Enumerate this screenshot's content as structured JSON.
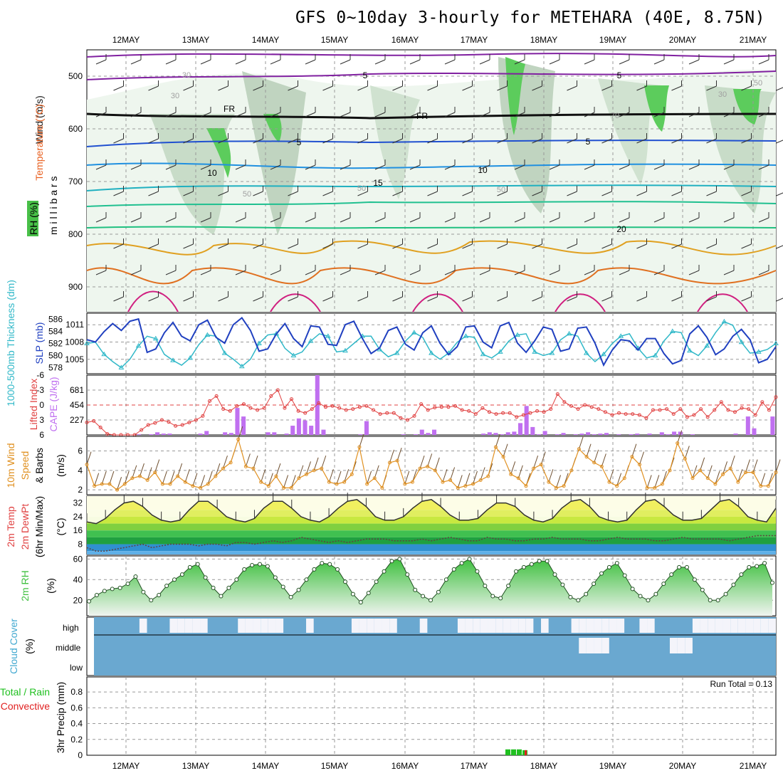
{
  "title": "GFS 0~10day 3-hourly for METEHARA (40E, 8.75N)",
  "dates": [
    "12MAY",
    "13MAY",
    "14MAY",
    "15MAY",
    "16MAY",
    "17MAY",
    "18MAY",
    "19MAY",
    "20MAY",
    "21MAY"
  ],
  "colors": {
    "rh": "#48c048",
    "temperature_label": "#e86020",
    "wind_label": "#202020",
    "thickness": "#30b8c8",
    "slp": "#2040c0",
    "cape": "#c070f0",
    "lifted_index": "#e04040",
    "wind10m": "#e09020",
    "rh2m": "#40c040",
    "cloud": "#6aa8d0",
    "precip_total": "#20c020",
    "precip_conv": "#e02020"
  },
  "labels": {
    "panel1": {
      "millibars": "m i l l i b a r s",
      "wind": "Wind (m/s)",
      "temperature": "Temperature (°C)",
      "rh": "RH (%)"
    },
    "panel2": {
      "thickness": "1000-500mb Thickness (dm)",
      "slp": "SLP (mb)"
    },
    "panel3": {
      "lifted": "Lifted Index",
      "cape": "CAPE (J/kg)"
    },
    "panel4": {
      "line1": "10m Wind",
      "line2": "Speed",
      "line3": "& Barbs",
      "unit": "(m/s)"
    },
    "panel5": {
      "line1": "2m Temp",
      "line2": "2m DewPt",
      "line3": "(6hr Min/Max)",
      "unit": "(°C)"
    },
    "panel6": {
      "line1": "2m RH",
      "unit": "(%)"
    },
    "panel7": {
      "line1": "Cloud Cover",
      "unit": "(%)",
      "high": "high",
      "middle": "middle",
      "low": "low"
    },
    "panel8": {
      "line1": "Total / Rain",
      "line2": "Convective",
      "line3": "3hr Precip (mm)",
      "run_total": "Run Total = 0.13"
    }
  },
  "chart_data": [
    {
      "type": "heatmap",
      "name": "upper-air cross-section",
      "y_axis": "millibars",
      "ylim": [
        940,
        455
      ],
      "yticks": [
        "500",
        "600",
        "700",
        "800",
        "900"
      ],
      "contour_labels": [
        "5",
        "5",
        "FR",
        "FR",
        "5",
        "5",
        "10",
        "10",
        "15",
        "20",
        "30",
        "30",
        "50",
        "50",
        "50",
        "70",
        "50",
        "30"
      ]
    },
    {
      "type": "line",
      "name": "thickness-slp",
      "thickness_ticks": [
        "586",
        "584",
        "582",
        "580",
        "578"
      ],
      "slp_ticks": [
        "1011",
        "1008",
        "1005"
      ],
      "thickness_range": [
        577,
        587
      ],
      "slp_range": [
        1002.5,
        1013
      ],
      "slp_values": [
        1008.4,
        1008.0,
        1009.8,
        1011.2,
        1010.0,
        1011.6,
        1012.0,
        1006.2,
        1006.8,
        1009.6,
        1011.4,
        1009.0,
        1008.2,
        1011.0,
        1011.8,
        1008.8,
        1007.8,
        1011.0,
        1012.2,
        1010.0,
        1006.4,
        1006.8,
        1009.4,
        1011.2,
        1008.6,
        1007.2,
        1010.8,
        1010.6,
        1007.6,
        1007.4,
        1011.0,
        1011.6,
        1008.6,
        1006.0,
        1007.0,
        1010.0,
        1010.6,
        1007.6,
        1006.6,
        1009.6,
        1010.8,
        1007.8,
        1005.8,
        1007.2,
        1010.6,
        1010.8,
        1008.0,
        1007.0,
        1010.8,
        1011.4,
        1007.8,
        1006.2,
        1008.2,
        1010.6,
        1010.2,
        1006.4,
        1006.8,
        1010.4,
        1010.6,
        1007.8,
        1004.0,
        1006.6,
        1008.4,
        1008.2,
        1006.6,
        1008.6,
        1008.6,
        1006.0,
        1004.2,
        1004.8,
        1009.4,
        1010.8,
        1008.8,
        1005.8,
        1006.8,
        1009.0,
        1010.2,
        1008.4,
        1004.4,
        1005.0,
        1007.2
      ],
      "thickness_values": [
        582.0,
        582.2,
        580.2,
        579.0,
        578.0,
        579.4,
        581.6,
        583.2,
        582.8,
        580.2,
        579.2,
        578.4,
        579.6,
        581.8,
        583.4,
        583.2,
        580.4,
        579.4,
        578.2,
        579.4,
        582.0,
        583.4,
        583.6,
        581.2,
        580.0,
        580.6,
        582.4,
        583.6,
        583.2,
        580.6,
        580.8,
        582.0,
        583.2,
        583.2,
        581.0,
        579.8,
        580.4,
        582.4,
        583.8,
        583.0,
        580.4,
        579.4,
        580.4,
        582.2,
        583.2,
        583.0,
        580.2,
        579.6,
        580.6,
        582.4,
        583.4,
        583.6,
        580.6,
        580.0,
        580.4,
        582.6,
        583.6,
        583.2,
        580.4,
        579.0,
        580.2,
        582.0,
        583.2,
        583.6,
        581.2,
        579.6,
        580.0,
        582.4,
        584.0,
        583.8,
        580.8,
        580.0,
        581.6,
        583.8,
        585.6,
        585.0,
        582.2,
        580.4,
        580.6,
        581.0,
        582.0
      ]
    },
    {
      "type": "bar",
      "name": "cape-lifted-index",
      "cape_ticks": [
        "681",
        "454",
        "227"
      ],
      "lifted_ticks": [
        "-6",
        "-3",
        "0",
        "3",
        "6"
      ],
      "cape_range": [
        0,
        908
      ],
      "lifted_range": [
        6,
        -6
      ],
      "cape_values": [
        0,
        0,
        0,
        0,
        0,
        0,
        0,
        0,
        10,
        0,
        10,
        40,
        20,
        20,
        0,
        0,
        0,
        0,
        20,
        60,
        0,
        0,
        40,
        30,
        410,
        280,
        0,
        0,
        0,
        40,
        40,
        0,
        20,
        140,
        250,
        220,
        140,
        908,
        80,
        0,
        0,
        0,
        0,
        0,
        10,
        210,
        0,
        0,
        0,
        0,
        0,
        10,
        0,
        10,
        80,
        30,
        80,
        0,
        0,
        0,
        0,
        0,
        0,
        0,
        20,
        40,
        30,
        10,
        40,
        50,
        180,
        440,
        120,
        10,
        60,
        0,
        10,
        30,
        0,
        10,
        20,
        40,
        10,
        20,
        30,
        0,
        10,
        0,
        10,
        20,
        0,
        20,
        0,
        40,
        10,
        50,
        50,
        0,
        10,
        0,
        0,
        0,
        0,
        0,
        0,
        20,
        0,
        280,
        100,
        0,
        0,
        280
      ],
      "lifted_values": [
        3.5,
        3.2,
        4.5,
        5.8,
        6.0,
        6.0,
        6.0,
        6.0,
        5.0,
        4.0,
        3.6,
        3.0,
        3.4,
        4.2,
        4.0,
        3.5,
        3.0,
        2.2,
        -0.8,
        -1.8,
        0.8,
        1.2,
        0.2,
        -0.2,
        0.6,
        1.0,
        0.6,
        -1.8,
        -3.0,
        0.6,
        -1.2,
        1.2,
        1.6,
        0.8,
        -0.4,
        0.4,
        0.2,
        0.6,
        1.0,
        0.8,
        0.4,
        0.2,
        1.0,
        1.8,
        1.6,
        1.6,
        2.6,
        3.0,
        2.2,
        -0.2,
        1.0,
        0.5,
        0.4,
        0.4,
        0.2,
        1.0,
        1.2,
        1.8,
        0.6,
        1.4,
        1.8,
        1.6,
        1.6,
        2.4,
        2.0,
        1.6,
        1.2,
        1.4,
        0.8,
        -2.2,
        -0.6,
        0.2,
        0.8,
        0.0,
        0.4,
        0.8,
        1.4,
        2.0,
        1.6,
        1.8,
        1.8,
        2.0,
        2.6,
        1.0,
        1.0,
        0.8,
        1.8,
        0.8,
        2.4,
        2.0,
        0.8,
        2.4,
        1.0,
        -0.6,
        1.0,
        1.4,
        0.6,
        0.8,
        2.0,
        -0.6,
        1.0,
        -1.6
      ]
    },
    {
      "type": "line",
      "name": "10m-wind-speed",
      "yticks": [
        "6",
        "4",
        "2"
      ],
      "ylim": [
        1.5,
        7.5
      ],
      "values": [
        4.6,
        2.4,
        2.6,
        2.6,
        2.0,
        2.6,
        3.2,
        3.4,
        3.0,
        3.8,
        2.6,
        2.6,
        3.4,
        2.8,
        2.4,
        2.2,
        2.6,
        3.4,
        4.2,
        4.8,
        7.2,
        4.4,
        4.2,
        2.8,
        2.4,
        3.4,
        2.2,
        2.2,
        3.2,
        3.6,
        4.0,
        4.2,
        2.8,
        2.6,
        2.8,
        3.6,
        6.4,
        2.6,
        3.2,
        2.2,
        4.8,
        5.0,
        2.6,
        2.8,
        4.2,
        4.4,
        4.0,
        2.8,
        3.0,
        2.2,
        2.4,
        2.6,
        3.0,
        3.4,
        6.4,
        5.4,
        3.6,
        3.2,
        2.4,
        4.2,
        4.6,
        2.8,
        2.2,
        2.4,
        4.0,
        6.2,
        5.4,
        4.8,
        4.4,
        2.8,
        2.4,
        3.2,
        5.4,
        4.6,
        2.2,
        2.2,
        2.6,
        4.0,
        6.8,
        5.2,
        3.2,
        4.0,
        3.2,
        2.6,
        3.6,
        4.2,
        2.8,
        3.8,
        3.8,
        2.4,
        2.4,
        3.8
      ]
    },
    {
      "type": "area",
      "name": "2m-temp-dewpt",
      "yticks": [
        "32",
        "24",
        "16",
        "8"
      ],
      "ylim": [
        2,
        36
      ],
      "temp_values": [
        21,
        20,
        23,
        28,
        32,
        33,
        30,
        25,
        22,
        21,
        22,
        28,
        33,
        33,
        29,
        24,
        22,
        21,
        23,
        29,
        33,
        33,
        29,
        24,
        22,
        21,
        24,
        29,
        33,
        34,
        30,
        24,
        22,
        22,
        24,
        29,
        33,
        34,
        30,
        25,
        22,
        22,
        23,
        28,
        32,
        32,
        30,
        25,
        22,
        21,
        23,
        29,
        33,
        34,
        30,
        24,
        22,
        21,
        22,
        28,
        33,
        34,
        30,
        25,
        22,
        22,
        23,
        28,
        33,
        34,
        30,
        24,
        22,
        21,
        29
      ],
      "dewpt_values": [
        6,
        4,
        4,
        5,
        6,
        7,
        8,
        6,
        7,
        8,
        8,
        8,
        7,
        8,
        8,
        7,
        9,
        9,
        8,
        9,
        10,
        9,
        10,
        12,
        11,
        10,
        9,
        10,
        9,
        10,
        11,
        11,
        11,
        10,
        10,
        10,
        11,
        10,
        11,
        12,
        11,
        10,
        10,
        12,
        11,
        11,
        10,
        10,
        11,
        11,
        12,
        11,
        11,
        11,
        10,
        10,
        11,
        12,
        11,
        11,
        11,
        10,
        10,
        11,
        12,
        11,
        11,
        11,
        11,
        10,
        11,
        12,
        13,
        13,
        13
      ]
    },
    {
      "type": "area",
      "name": "2m-rh",
      "yticks": [
        "60",
        "40",
        "20"
      ],
      "ylim": [
        5,
        63
      ],
      "values": [
        19,
        25,
        29,
        31,
        32,
        36,
        43,
        28,
        20,
        25,
        34,
        40,
        45,
        52,
        55,
        42,
        32,
        24,
        32,
        40,
        50,
        54,
        55,
        53,
        42,
        33,
        23,
        30,
        40,
        50,
        56,
        55,
        50,
        38,
        26,
        18,
        27,
        38,
        48,
        58,
        60,
        45,
        30,
        24,
        20,
        28,
        40,
        50,
        56,
        60,
        48,
        34,
        24,
        22,
        34,
        48,
        52,
        55,
        58,
        58,
        45,
        35,
        23,
        20,
        26,
        36,
        46,
        52,
        56,
        44,
        31,
        24,
        20,
        26,
        36,
        45,
        52,
        52,
        40,
        30,
        20,
        20,
        26,
        35,
        45,
        52,
        53,
        56,
        37
      ]
    },
    {
      "type": "bar",
      "name": "cloud-cover",
      "levels": [
        "high",
        "middle",
        "low"
      ],
      "high_clear": [
        0,
        0,
        0,
        0,
        0,
        0,
        1,
        0,
        0,
        0,
        1,
        1,
        1,
        1,
        1,
        0,
        0,
        0,
        0,
        1,
        1,
        1,
        1,
        1,
        1,
        0,
        0,
        0,
        1,
        0,
        0,
        0,
        0,
        0,
        1,
        1,
        1,
        1,
        1,
        1,
        0,
        0,
        0,
        1,
        0,
        0,
        0,
        0,
        1,
        1,
        1,
        1,
        1,
        1,
        1,
        1,
        1,
        1,
        0,
        1,
        0,
        0,
        0,
        1,
        1,
        1,
        1,
        1,
        1,
        1,
        0,
        0,
        1,
        1,
        0,
        0,
        0,
        0,
        0,
        1,
        1,
        1,
        1,
        1,
        1,
        1,
        1,
        1,
        1,
        1
      ],
      "middle_clear": [
        0,
        0,
        0,
        0,
        0,
        0,
        0,
        0,
        0,
        0,
        0,
        0,
        0,
        0,
        0,
        0,
        0,
        0,
        0,
        0,
        0,
        0,
        0,
        0,
        0,
        0,
        0,
        0,
        0,
        0,
        0,
        0,
        0,
        0,
        0,
        0,
        0,
        0,
        0,
        0,
        0,
        0,
        0,
        0,
        0,
        0,
        0,
        0,
        0,
        0,
        0,
        0,
        0,
        0,
        0,
        0,
        0,
        0,
        0,
        0,
        0,
        0,
        0,
        0,
        1,
        1,
        1,
        1,
        0,
        0,
        0,
        0,
        0,
        0,
        0,
        0,
        1,
        1,
        1,
        0,
        0,
        0,
        0,
        0,
        0,
        0,
        0,
        0,
        0,
        0
      ]
    },
    {
      "type": "bar",
      "name": "3hr-precip",
      "yticks": [
        "0.8",
        "0.6",
        "0.4",
        "0.2",
        "0"
      ],
      "ylim": [
        0,
        0.9
      ],
      "total_values": [
        0.02,
        0.02,
        0.02,
        0.01
      ],
      "convective_values": [
        0,
        0,
        0,
        0.01
      ],
      "run_total": "Run Total = 0.13"
    }
  ]
}
